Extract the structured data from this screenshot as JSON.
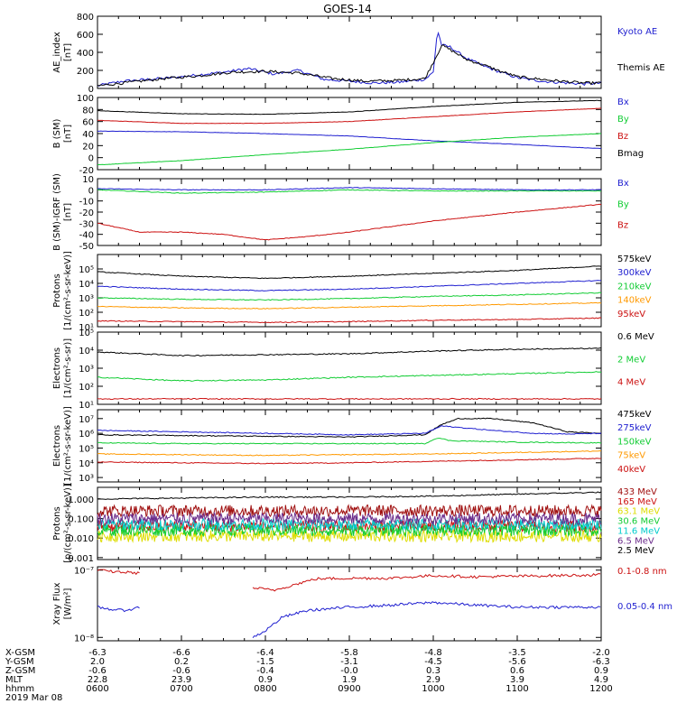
{
  "title": "GOES-14",
  "colors": {
    "black": "#000000",
    "blue": "#1f1fd0",
    "red": "#cc1111",
    "green": "#11cc33",
    "orange": "#ff9900",
    "cyan": "#00cccc",
    "yellow": "#dddd00",
    "purple": "#6a2a8a",
    "dkred": "#a01010"
  },
  "chart_data": [
    {
      "type": "line",
      "ylabel": "AE_index [nT]",
      "ylim": [
        0,
        800
      ],
      "ticks": [
        "0",
        "200",
        "400",
        "600",
        "800"
      ],
      "series": [
        {
          "name": "Kyoto AE",
          "color": "blue",
          "x": [
            6.0,
            6.3,
            6.6,
            6.9,
            7.2,
            7.5,
            7.8,
            8.1,
            8.4,
            8.7,
            9.0,
            9.3,
            9.6,
            9.9,
            10.0,
            10.05,
            10.1,
            10.2,
            10.4,
            10.6,
            10.8,
            11.0,
            11.3,
            11.6,
            11.8,
            12.0
          ],
          "y": [
            30,
            80,
            100,
            120,
            150,
            180,
            220,
            160,
            200,
            100,
            80,
            60,
            70,
            100,
            180,
            650,
            480,
            460,
            330,
            250,
            180,
            120,
            80,
            60,
            50,
            60
          ]
        },
        {
          "name": "Themis AE",
          "color": "black",
          "x": [
            6.0,
            6.4,
            6.8,
            7.2,
            7.6,
            8.0,
            8.4,
            8.8,
            9.2,
            9.6,
            9.9,
            10.05,
            10.1,
            10.2,
            10.4,
            10.6,
            10.8,
            11.0,
            11.4,
            11.8,
            12.0
          ],
          "y": [
            30,
            70,
            110,
            140,
            180,
            190,
            170,
            110,
            80,
            90,
            110,
            380,
            480,
            430,
            320,
            260,
            190,
            130,
            90,
            60,
            60
          ]
        }
      ]
    },
    {
      "type": "line",
      "ylabel": "B (SM) [nT]",
      "ylim": [
        -20,
        100
      ],
      "ticks": [
        "-20",
        "0",
        "20",
        "40",
        "60",
        "80",
        "100"
      ],
      "series": [
        {
          "name": "Bx",
          "color": "blue",
          "x": [
            6.0,
            7.0,
            8.0,
            9.0,
            10.0,
            11.0,
            12.0
          ],
          "y": [
            44,
            43,
            40,
            36,
            28,
            22,
            15
          ]
        },
        {
          "name": "By",
          "color": "green",
          "x": [
            6.0,
            7.0,
            8.0,
            9.0,
            10.0,
            11.0,
            12.0
          ],
          "y": [
            -12,
            -5,
            5,
            14,
            25,
            34,
            40
          ]
        },
        {
          "name": "Bz",
          "color": "red",
          "x": [
            6.0,
            7.0,
            8.0,
            9.0,
            10.0,
            11.0,
            12.0
          ],
          "y": [
            62,
            57,
            57,
            60,
            68,
            76,
            82
          ]
        },
        {
          "name": "Bmag",
          "color": "black",
          "x": [
            6.0,
            7.0,
            8.0,
            9.0,
            10.0,
            11.0,
            12.0
          ],
          "y": [
            78,
            73,
            72,
            76,
            85,
            92,
            95
          ]
        }
      ]
    },
    {
      "type": "line",
      "ylabel": "B (SM)-IGRF (SM) [nT]",
      "ylim": [
        -50,
        10
      ],
      "ticks": [
        "-50",
        "-40",
        "-30",
        "-20",
        "-10",
        "0",
        "10"
      ],
      "series": [
        {
          "name": "Bx",
          "color": "blue",
          "x": [
            6.0,
            7.0,
            8.0,
            9.0,
            10.0,
            11.0,
            12.0
          ],
          "y": [
            1,
            0,
            0,
            2,
            1,
            0,
            0
          ]
        },
        {
          "name": "By",
          "color": "green",
          "x": [
            6.0,
            7.0,
            8.0,
            9.0,
            10.0,
            11.0,
            12.0
          ],
          "y": [
            0,
            -3,
            -2,
            0,
            -1,
            -1,
            -1
          ]
        },
        {
          "name": "Bz",
          "color": "red",
          "x": [
            6.0,
            6.5,
            7.0,
            7.5,
            8.0,
            8.5,
            9.0,
            9.5,
            10.0,
            11.0,
            12.0
          ],
          "y": [
            -30,
            -38,
            -38,
            -40,
            -45,
            -42,
            -38,
            -33,
            -28,
            -20,
            -13
          ]
        }
      ]
    },
    {
      "type": "line",
      "ylabel": "Protons [1/(cm²-s-sr-keV)]",
      "ylim": [
        1,
        6
      ],
      "ticks": [
        "10¹",
        "10²",
        "10³",
        "10⁴",
        "10⁵"
      ],
      "series": [
        {
          "name": "575keV",
          "color": "black",
          "x": [
            6.0,
            7.0,
            8.0,
            9.0,
            10.0,
            11.0,
            12.0
          ],
          "y": [
            4.8,
            4.5,
            4.35,
            4.5,
            4.7,
            4.9,
            5.2
          ]
        },
        {
          "name": "300keV",
          "color": "blue",
          "x": [
            6.0,
            7.0,
            8.0,
            9.0,
            10.0,
            11.0,
            12.0
          ],
          "y": [
            3.8,
            3.6,
            3.5,
            3.6,
            3.8,
            4.0,
            4.2
          ]
        },
        {
          "name": "210keV",
          "color": "green",
          "x": [
            6.0,
            7.0,
            8.0,
            9.0,
            10.0,
            11.0,
            12.0
          ],
          "y": [
            3.0,
            2.9,
            2.85,
            2.95,
            3.1,
            3.2,
            3.35
          ]
        },
        {
          "name": "140keV",
          "color": "orange",
          "x": [
            6.0,
            7.0,
            8.0,
            9.0,
            10.0,
            11.0,
            12.0
          ],
          "y": [
            2.4,
            2.3,
            2.25,
            2.35,
            2.45,
            2.55,
            2.65
          ]
        },
        {
          "name": "95keV",
          "color": "red",
          "x": [
            6.0,
            7.0,
            8.0,
            9.0,
            10.0,
            11.0,
            12.0
          ],
          "y": [
            1.4,
            1.35,
            1.3,
            1.35,
            1.45,
            1.5,
            1.6
          ]
        }
      ]
    },
    {
      "type": "line",
      "ylabel": "Electrons [1/(cm²-s-sr)]",
      "ylim": [
        1,
        5
      ],
      "ticks": [
        "10¹",
        "10²",
        "10³",
        "10⁴",
        "10⁵"
      ],
      "series": [
        {
          "name": "0.6 MeV",
          "color": "black",
          "x": [
            6.0,
            7.0,
            8.0,
            9.0,
            10.0,
            11.0,
            12.0
          ],
          "y": [
            3.9,
            3.7,
            3.75,
            3.8,
            3.95,
            4.05,
            4.1
          ]
        },
        {
          "name": "2 MeV",
          "color": "green",
          "x": [
            6.0,
            7.0,
            8.0,
            9.0,
            10.0,
            11.0,
            12.0
          ],
          "y": [
            2.5,
            2.3,
            2.35,
            2.5,
            2.6,
            2.7,
            2.8
          ]
        },
        {
          "name": "4 MeV",
          "color": "red",
          "x": [
            6.0,
            12.0
          ],
          "y": [
            1.3,
            1.3
          ]
        }
      ]
    },
    {
      "type": "line",
      "ylabel": "Electrons [1/(cm²-s-sr-keV)]",
      "ylim": [
        2.7,
        7.6
      ],
      "ticks": [
        "10³",
        "10⁴",
        "10⁵",
        "10⁶",
        "10⁷"
      ],
      "series": [
        {
          "name": "475keV",
          "color": "black",
          "x": [
            6.0,
            7.0,
            8.0,
            9.0,
            9.9,
            10.1,
            10.3,
            10.7,
            11.2,
            11.6,
            12.0
          ],
          "y": [
            5.9,
            5.85,
            5.8,
            5.75,
            5.9,
            6.6,
            7.0,
            7.0,
            6.7,
            6.1,
            6.0
          ]
        },
        {
          "name": "275keV",
          "color": "blue",
          "x": [
            6.0,
            7.0,
            8.0,
            9.0,
            9.9,
            10.1,
            10.3,
            10.7,
            11.2,
            11.6,
            12.0
          ],
          "y": [
            6.2,
            6.1,
            6.0,
            5.9,
            6.0,
            6.5,
            6.4,
            6.2,
            6.0,
            5.95,
            6.0
          ]
        },
        {
          "name": "150keV",
          "color": "green",
          "x": [
            6.0,
            7.0,
            8.0,
            9.0,
            9.9,
            10.05,
            10.2,
            11.0,
            12.0
          ],
          "y": [
            5.35,
            5.3,
            5.3,
            5.3,
            5.3,
            5.7,
            5.5,
            5.4,
            5.35
          ]
        },
        {
          "name": "75keV",
          "color": "orange",
          "x": [
            6.0,
            7.0,
            8.0,
            9.0,
            10.0,
            11.0,
            12.0
          ],
          "y": [
            4.6,
            4.55,
            4.5,
            4.55,
            4.6,
            4.7,
            4.8
          ]
        },
        {
          "name": "40keV",
          "color": "red",
          "x": [
            6.0,
            7.0,
            8.0,
            9.0,
            10.0,
            11.0,
            12.0
          ],
          "y": [
            4.05,
            4.0,
            3.95,
            4.0,
            4.1,
            4.2,
            4.3
          ]
        }
      ]
    },
    {
      "type": "line",
      "ylabel": "Protons [p/(cm²-s-sr-keV)]",
      "ylim": [
        -3.1,
        0.6
      ],
      "ticks": [
        "0.001",
        "0.010",
        "0.100",
        "1.000"
      ],
      "series": [
        {
          "name": "433 MeV",
          "color": "dkred",
          "x": [
            6.0,
            12.0
          ],
          "y": [
            -0.6,
            -0.6
          ]
        },
        {
          "name": "165 MeV",
          "color": "red",
          "x": [
            6.0,
            12.0
          ],
          "y": [
            -1.4,
            -1.4
          ]
        },
        {
          "name": "63.1 MeV",
          "color": "yellow",
          "x": [
            6.0,
            12.0
          ],
          "y": [
            -1.9,
            -1.9
          ]
        },
        {
          "name": "30.6 MeV",
          "color": "green",
          "x": [
            6.0,
            12.0
          ],
          "y": [
            -1.6,
            -1.6
          ]
        },
        {
          "name": "11.6 MeV",
          "color": "cyan",
          "x": [
            6.0,
            12.0
          ],
          "y": [
            -1.3,
            -1.3
          ]
        },
        {
          "name": "6.5 MeV",
          "color": "purple",
          "x": [
            6.0,
            12.0
          ],
          "y": [
            -1.0,
            -1.0
          ]
        },
        {
          "name": "2.5 MeV",
          "color": "black",
          "x": [
            6.0,
            7.0,
            8.0,
            9.0,
            10.0,
            11.0,
            12.0
          ],
          "y": [
            0.0,
            0.05,
            0.1,
            0.1,
            0.15,
            0.25,
            0.35
          ]
        }
      ]
    },
    {
      "type": "line",
      "ylabel": "Xray Flux [W/m²]",
      "ylim": [
        -8.05,
        -6.95
      ],
      "ticks": [
        "10⁻⁸",
        "10⁻⁷"
      ],
      "series": [
        {
          "name": "0.1-0.8 nm",
          "color": "red",
          "x": [
            6.0,
            6.15,
            6.3,
            6.45,
            6.5,
            8.1,
            8.3,
            8.6,
            9.0,
            9.5,
            10.0,
            10.5,
            11.0,
            11.5,
            12.0
          ],
          "y": [
            -7.0,
            -7.02,
            -7.03,
            -7.04,
            -7.05,
            -7.3,
            -7.23,
            -7.13,
            -7.12,
            -7.12,
            -7.08,
            -7.1,
            -7.09,
            -7.08,
            -7.07
          ]
        },
        {
          "name": "0.05-0.4 nm",
          "color": "blue",
          "x": [
            6.0,
            6.15,
            6.3,
            6.45,
            6.5,
            7.85,
            8.0,
            8.2,
            8.5,
            9.0,
            9.5,
            10.0,
            10.5,
            11.0,
            11.5,
            12.0
          ],
          "y": [
            -7.55,
            -7.58,
            -7.6,
            -7.57,
            -7.55,
            -8.0,
            -7.9,
            -7.7,
            -7.6,
            -7.55,
            -7.52,
            -7.48,
            -7.52,
            -7.55,
            -7.55,
            -7.55
          ]
        }
      ]
    }
  ],
  "xaxis": {
    "row_labels": [
      "X-GSM",
      "Y-GSM",
      "Z-GSM",
      "MLT",
      "hhmm",
      "2019 Mar 08"
    ],
    "columns": [
      [
        "-6.3",
        "2.0",
        "-0.6",
        "22.8",
        "0600"
      ],
      [
        "-6.6",
        "0.2",
        "-0.6",
        "23.9",
        "0700"
      ],
      [
        "-6.4",
        "-1.5",
        "-0.4",
        "0.9",
        "0800"
      ],
      [
        "-5.8",
        "-3.1",
        "-0.0",
        "1.9",
        "0900"
      ],
      [
        "-4.8",
        "-4.5",
        "0.3",
        "2.9",
        "1000"
      ],
      [
        "-3.5",
        "-5.6",
        "0.6",
        "3.9",
        "1100"
      ],
      [
        "-2.0",
        "-6.3",
        "0.9",
        "4.9",
        "1200"
      ]
    ]
  }
}
